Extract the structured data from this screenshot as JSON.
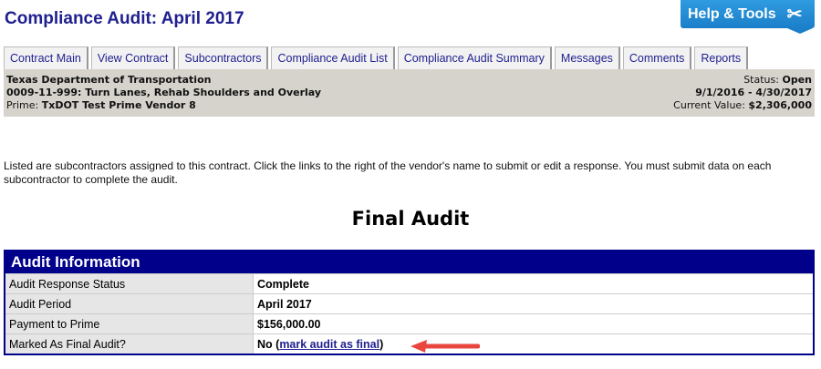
{
  "page_title": "Compliance Audit: April 2017",
  "help_button": {
    "label": "Help & Tools",
    "icon": "tools-icon"
  },
  "tabs": [
    "Contract Main",
    "View Contract",
    "Subcontractors",
    "Compliance Audit List",
    "Compliance Audit Summary",
    "Messages",
    "Comments",
    "Reports"
  ],
  "contract": {
    "agency": "Texas Department of Transportation",
    "project": "0009-11-999: Turn Lanes, Rehab Shoulders and Overlay",
    "prime_label": "Prime:",
    "prime": "TxDOT Test Prime Vendor 8",
    "status_label": "Status:",
    "status": "Open",
    "dates": "9/1/2016 - 4/30/2017",
    "value_label": "Current Value:",
    "value": "$2,306,000"
  },
  "instructions": "Listed are subcontractors assigned to this contract. Click the links to the right of the vendor's name to submit or edit a response. You must submit data on each subcontractor to complete the audit.",
  "section_heading": "Final Audit",
  "audit_table": {
    "title": "Audit Information",
    "rows": [
      {
        "label": "Audit Response Status",
        "value": "Complete"
      },
      {
        "label": "Audit Period",
        "value": "April 2017"
      },
      {
        "label": "Payment to Prime",
        "value": "$156,000.00"
      },
      {
        "label": "Marked As Final Audit?",
        "value": "No",
        "link": "mark audit as final"
      }
    ]
  },
  "colors": {
    "header_navy": "#00008b",
    "title": "#1f1f8f",
    "help_blue": "#2f9be0",
    "arrow": "#e8463f"
  }
}
